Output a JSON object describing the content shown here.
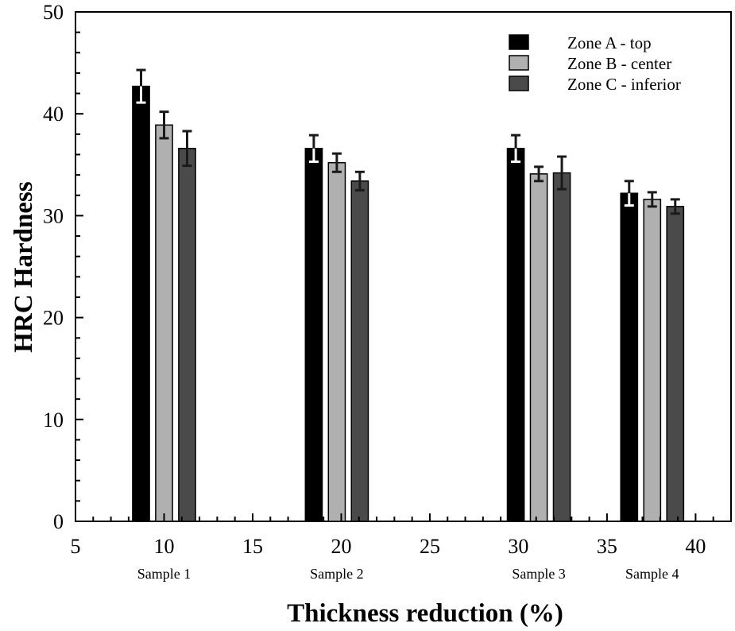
{
  "chart_data": {
    "type": "bar",
    "title": "",
    "xlabel": "Thickness reduction (%)",
    "ylabel": "HRC Hardness",
    "xlim": [
      5,
      42
    ],
    "ylim": [
      0,
      50
    ],
    "x_ticks": [
      5,
      10,
      15,
      20,
      25,
      30,
      35,
      40
    ],
    "y_ticks": [
      0,
      10,
      20,
      30,
      40,
      50
    ],
    "x_minor_step": 1,
    "y_minor_step": 2,
    "grid": false,
    "legend_position": "top-right",
    "categories": [
      "Sample 1",
      "Sample 2",
      "Sample 3",
      "Sample 4"
    ],
    "category_x": [
      10.0,
      19.75,
      31.15,
      37.55
    ],
    "series": [
      {
        "name": "Zone A - top",
        "color": "#000000",
        "values": [
          42.7,
          36.6,
          36.6,
          32.2
        ],
        "error": [
          1.6,
          1.3,
          1.3,
          1.2
        ]
      },
      {
        "name": "Zone B - center",
        "color": "#b0b0b0",
        "values": [
          38.9,
          35.2,
          34.1,
          31.6
        ],
        "error": [
          1.3,
          0.9,
          0.7,
          0.7
        ]
      },
      {
        "name": "Zone C - inferior",
        "color": "#4a4a4a",
        "values": [
          36.6,
          33.4,
          34.2,
          30.9
        ],
        "error": [
          1.7,
          0.9,
          1.6,
          0.7
        ]
      }
    ]
  }
}
